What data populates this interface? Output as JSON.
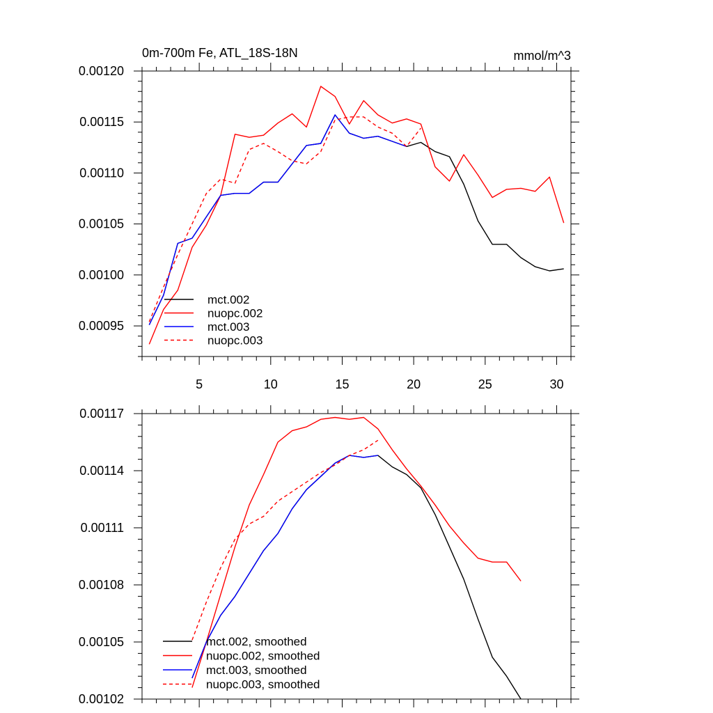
{
  "chart_data": [
    {
      "type": "line",
      "title": "0m-700m Fe, ATL_18S-18N",
      "units": "mmol/m^3",
      "xlabel": "",
      "ylabel": "",
      "xlim": [
        1,
        31
      ],
      "ylim": [
        0.00092,
        0.0012
      ],
      "xticks": [
        5,
        10,
        15,
        20,
        25,
        30
      ],
      "xtick_labels": [
        "5",
        "10",
        "15",
        "20",
        "25",
        "30"
      ],
      "yticks": [
        0.00095,
        0.001,
        0.00105,
        0.0011,
        0.00115,
        0.0012
      ],
      "ytick_labels": [
        "0.00095",
        "0.00100",
        "0.00105",
        "0.00110",
        "0.00115",
        "0.00120"
      ],
      "legend_position": "bottom-left",
      "series": [
        {
          "name": "mct.002",
          "color": "#000000",
          "dash": "solid",
          "x": [
            1.5,
            2.5,
            3.5,
            4.5,
            5.5,
            6.5,
            7.5,
            8.5,
            9.5,
            10.5,
            11.5,
            12.5,
            13.5,
            14.5,
            15.5,
            16.5,
            17.5,
            18.5,
            19.5,
            20.5,
            21.5,
            22.5,
            23.5,
            24.5,
            25.5,
            26.5,
            27.5,
            28.5,
            29.5,
            30.5
          ],
          "y": [
            0.000951,
            0.00098,
            0.001031,
            0.001036,
            0.001057,
            0.001078,
            0.00108,
            0.00108,
            0.001091,
            0.001091,
            0.001109,
            0.001127,
            0.001129,
            0.001157,
            0.001139,
            0.001134,
            0.001136,
            0.001131,
            0.001126,
            0.00113,
            0.001121,
            0.001116,
            0.001089,
            0.001053,
            0.00103,
            0.00103,
            0.001017,
            0.001008,
            0.001004,
            0.001006
          ]
        },
        {
          "name": "nuopc.002",
          "color": "#ff0000",
          "dash": "solid",
          "x": [
            1.5,
            2.5,
            3.5,
            4.5,
            5.5,
            6.5,
            7.5,
            8.5,
            9.5,
            10.5,
            11.5,
            12.5,
            13.5,
            14.5,
            15.5,
            16.5,
            17.5,
            18.5,
            19.5,
            20.5,
            21.5,
            22.5,
            23.5,
            24.5,
            25.5,
            26.5,
            27.5,
            28.5,
            29.5,
            30.5
          ],
          "y": [
            0.000932,
            0.000966,
            0.000985,
            0.001027,
            0.001049,
            0.001078,
            0.001138,
            0.001135,
            0.001137,
            0.001149,
            0.001158,
            0.001145,
            0.001185,
            0.001175,
            0.001148,
            0.001171,
            0.001157,
            0.001149,
            0.001153,
            0.001148,
            0.001106,
            0.001092,
            0.001118,
            0.001098,
            0.001076,
            0.001084,
            0.001085,
            0.001082,
            0.001096,
            0.001051
          ]
        },
        {
          "name": "mct.003",
          "color": "#0000ff",
          "dash": "solid",
          "x": [
            1.5,
            2.5,
            3.5,
            4.5,
            5.5,
            6.5,
            7.5,
            8.5,
            9.5,
            10.5,
            11.5,
            12.5,
            13.5,
            14.5,
            15.5,
            16.5,
            17.5,
            18.5,
            19.5
          ],
          "y": [
            0.000951,
            0.00098,
            0.001031,
            0.001036,
            0.001057,
            0.001078,
            0.00108,
            0.00108,
            0.001091,
            0.001091,
            0.001109,
            0.001127,
            0.001129,
            0.001157,
            0.001139,
            0.001134,
            0.001136,
            0.001131,
            0.001126
          ]
        },
        {
          "name": "nuopc.003",
          "color": "#ff0000",
          "dash": "dashed",
          "x": [
            1.5,
            2.5,
            3.5,
            4.5,
            5.5,
            6.5,
            7.5,
            8.5,
            9.5,
            10.5,
            11.5,
            12.5,
            13.5,
            14.5,
            15.5,
            16.5,
            17.5,
            18.5,
            19.5,
            20.5
          ],
          "y": [
            0.000954,
            0.000988,
            0.00102,
            0.00105,
            0.00108,
            0.001094,
            0.00109,
            0.001123,
            0.001129,
            0.001121,
            0.001112,
            0.001109,
            0.001121,
            0.001152,
            0.001155,
            0.001155,
            0.001145,
            0.001139,
            0.001126,
            0.001144
          ]
        }
      ]
    },
    {
      "type": "line",
      "title": "",
      "xlabel": "",
      "ylabel": "",
      "xlim": [
        1,
        31
      ],
      "ylim": [
        0.00102,
        0.00117
      ],
      "xticks": [
        5,
        10,
        15,
        20,
        25,
        30
      ],
      "xtick_labels": [],
      "yticks": [
        0.00102,
        0.00105,
        0.00108,
        0.00111,
        0.00114,
        0.00117
      ],
      "ytick_labels": [
        "0.00102",
        "0.00105",
        "0.00108",
        "0.00111",
        "0.00114",
        "0.00117"
      ],
      "legend_position": "bottom-left",
      "series": [
        {
          "name": "mct.002, smoothed",
          "color": "#000000",
          "dash": "solid",
          "x": [
            4.5,
            5.5,
            6.5,
            7.5,
            8.5,
            9.5,
            10.5,
            11.5,
            12.5,
            13.5,
            14.5,
            15.5,
            16.5,
            17.5,
            18.5,
            19.5,
            20.5,
            21.5,
            22.5,
            23.5,
            24.5,
            25.5,
            26.5,
            27.5
          ],
          "y": [
            0.001031,
            0.00105,
            0.001064,
            0.001074,
            0.001086,
            0.001098,
            0.001107,
            0.00112,
            0.00113,
            0.001137,
            0.001144,
            0.001148,
            0.001147,
            0.001148,
            0.001142,
            0.001138,
            0.001131,
            0.001117,
            0.0011,
            0.001083,
            0.001062,
            0.001042,
            0.001032,
            0.00102
          ]
        },
        {
          "name": "nuopc.002, smoothed",
          "color": "#ff0000",
          "dash": "solid",
          "x": [
            4.5,
            5.5,
            6.5,
            7.5,
            8.5,
            9.5,
            10.5,
            11.5,
            12.5,
            13.5,
            14.5,
            15.5,
            16.5,
            17.5,
            18.5,
            19.5,
            20.5,
            21.5,
            22.5,
            23.5,
            24.5,
            25.5,
            26.5,
            27.5
          ],
          "y": [
            0.001026,
            0.00105,
            0.001075,
            0.0011,
            0.001122,
            0.001138,
            0.001155,
            0.001161,
            0.001163,
            0.001167,
            0.001168,
            0.001167,
            0.001168,
            0.001162,
            0.001151,
            0.001141,
            0.001132,
            0.001122,
            0.001111,
            0.001102,
            0.001094,
            0.001092,
            0.001092,
            0.001082
          ]
        },
        {
          "name": "mct.003, smoothed",
          "color": "#0000ff",
          "dash": "solid",
          "x": [
            4.5,
            5.5,
            6.5,
            7.5,
            8.5,
            9.5,
            10.5,
            11.5,
            12.5,
            13.5,
            14.5,
            15.5,
            16.5,
            17.5
          ],
          "y": [
            0.001031,
            0.00105,
            0.001064,
            0.001074,
            0.001086,
            0.001098,
            0.001107,
            0.00112,
            0.00113,
            0.001137,
            0.001144,
            0.001148,
            0.001147,
            0.001148
          ]
        },
        {
          "name": "nuopc.003, smoothed",
          "color": "#ff0000",
          "dash": "dashed",
          "x": [
            4.5,
            5.5,
            6.5,
            7.5,
            8.5,
            9.5,
            10.5,
            11.5,
            12.5,
            13.5,
            14.5,
            15.5,
            16.5,
            17.5
          ],
          "y": [
            0.001051,
            0.001071,
            0.001089,
            0.001104,
            0.001112,
            0.001116,
            0.001124,
            0.001129,
            0.001134,
            0.001139,
            0.001143,
            0.001148,
            0.001151,
            0.001156
          ]
        }
      ]
    }
  ]
}
